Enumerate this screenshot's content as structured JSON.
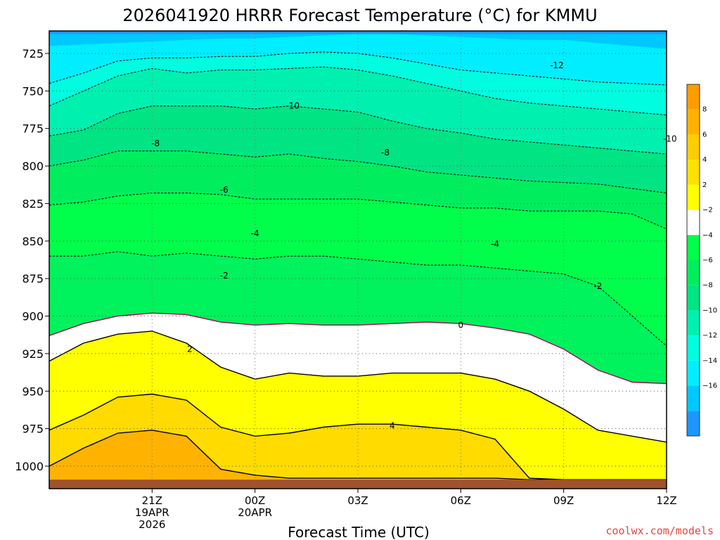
{
  "chart_data": {
    "type": "contour",
    "title": "2026041920 HRRR Forecast Temperature (°C) for KMMU",
    "xlabel": "Forecast Time (UTC)",
    "ylabel": "",
    "x_unit": "forecast hour",
    "xlim": [
      -3,
      15
    ],
    "ylim": [
      1015,
      710
    ],
    "y_ticks": [
      725,
      750,
      775,
      800,
      825,
      850,
      875,
      900,
      925,
      950,
      975,
      1000
    ],
    "x_ticks": [
      {
        "hour": 0,
        "label": "21Z",
        "sub1": "19APR",
        "sub2": "2026"
      },
      {
        "hour": 3,
        "label": "00Z",
        "sub1": "20APR",
        "sub2": ""
      },
      {
        "hour": 6,
        "label": "03Z",
        "sub1": "",
        "sub2": ""
      },
      {
        "hour": 9,
        "label": "06Z",
        "sub1": "",
        "sub2": ""
      },
      {
        "hour": 12,
        "label": "09Z",
        "sub1": "",
        "sub2": ""
      },
      {
        "hour": 15,
        "label": "12Z",
        "sub1": "",
        "sub2": ""
      }
    ],
    "grid": true,
    "ground_pressure": 1009,
    "fill_levels": [
      {
        "pressure": [
          860,
          860,
          857,
          860,
          858,
          860,
          862,
          860,
          860,
          862,
          864,
          866,
          866,
          868,
          870,
          872,
          880,
          900,
          920
        ],
        "color": "#00ff4a"
      },
      {
        "pressure": [
          826,
          824,
          820,
          818,
          818,
          819,
          822,
          822,
          822,
          822,
          824,
          826,
          828,
          828,
          830,
          830,
          830,
          832,
          842
        ],
        "color": "#00ee5e"
      },
      {
        "pressure": [
          800,
          796,
          790,
          790,
          790,
          792,
          794,
          792,
          795,
          797,
          800,
          804,
          806,
          808,
          810,
          811,
          812,
          815,
          818
        ],
        "color": "#00e483"
      },
      {
        "pressure": [
          780,
          776,
          765,
          760,
          760,
          760,
          762,
          760,
          762,
          764,
          770,
          775,
          778,
          782,
          784,
          786,
          788,
          790,
          792
        ],
        "color": "#00f0b0"
      },
      {
        "pressure": [
          760,
          750,
          740,
          735,
          738,
          736,
          736,
          735,
          734,
          736,
          740,
          745,
          750,
          755,
          758,
          760,
          762,
          764,
          766
        ],
        "color": "#00fde0"
      },
      {
        "pressure": [
          745,
          738,
          730,
          728,
          728,
          727,
          727,
          725,
          724,
          725,
          728,
          732,
          736,
          738,
          740,
          742,
          744,
          745,
          746
        ],
        "color": "#00eeff"
      },
      {
        "pressure": [
          720,
          719,
          718,
          717,
          716,
          715,
          715,
          714,
          713,
          712,
          712,
          713,
          714,
          715,
          716,
          716,
          718,
          720,
          722
        ],
        "color": "#00c8ff"
      },
      {
        "pressure": [
          712,
          712,
          712,
          712,
          712,
          712,
          712,
          712,
          712,
          712,
          712,
          712,
          712,
          712,
          712,
          712,
          712,
          712,
          712
        ],
        "color": "#1e96ff"
      }
    ],
    "warm_fills": [
      {
        "pressure": [
          913,
          905,
          900,
          898,
          899,
          904,
          906,
          905,
          906,
          906,
          905,
          904,
          905,
          908,
          912,
          922,
          936,
          944,
          945
        ],
        "color": "#ffffff"
      },
      {
        "pressure": [
          930,
          918,
          912,
          910,
          918,
          934,
          942,
          938,
          940,
          940,
          938,
          938,
          938,
          942,
          950,
          962,
          976,
          980,
          984
        ],
        "color": "#ffff00"
      },
      {
        "pressure": [
          976,
          966,
          954,
          952,
          956,
          974,
          980,
          978,
          974,
          972,
          972,
          974,
          976,
          982,
          1008,
          1009,
          1009,
          1009,
          1009
        ],
        "color": "#ffdb00"
      },
      {
        "pressure": [
          1000,
          988,
          978,
          976,
          980,
          1002,
          1006,
          1008,
          1008,
          1008,
          1008,
          1008,
          1008,
          1008,
          1009,
          1009,
          1009,
          1009,
          1009
        ],
        "color": "#ffb300"
      }
    ],
    "contour_labels": [
      {
        "hour": 0.1,
        "pressure": 785,
        "text": "-8"
      },
      {
        "hour": 4.1,
        "pressure": 760,
        "text": "-10"
      },
      {
        "hour": 6.8,
        "pressure": 791,
        "text": "-8"
      },
      {
        "hour": 11.8,
        "pressure": 733,
        "text": "-12"
      },
      {
        "hour": 15.1,
        "pressure": 782,
        "text": "-10"
      },
      {
        "hour": 2.1,
        "pressure": 816,
        "text": "-6"
      },
      {
        "hour": 3.0,
        "pressure": 845,
        "text": "-4"
      },
      {
        "hour": 10.0,
        "pressure": 852,
        "text": "-4"
      },
      {
        "hour": 2.1,
        "pressure": 873,
        "text": "-2"
      },
      {
        "hour": 13.0,
        "pressure": 880,
        "text": "-2"
      },
      {
        "hour": 9.0,
        "pressure": 906,
        "text": "0"
      },
      {
        "hour": 1.1,
        "pressure": 922,
        "text": "2"
      },
      {
        "hour": 7.0,
        "pressure": 973,
        "text": "4"
      }
    ],
    "colorbar": {
      "labels": [
        "8",
        "6",
        "4",
        "2",
        "−2",
        "−4",
        "−6",
        "−8",
        "−10",
        "−12",
        "−14",
        "−16"
      ],
      "colors": [
        "#ff9c00",
        "#ffb300",
        "#ffcd00",
        "#ffe100",
        "#ffff00",
        "#ffffff",
        "#00ff4a",
        "#00ee5e",
        "#00e483",
        "#00f0b0",
        "#00fde0",
        "#00eeff",
        "#00c8ff",
        "#1e96ff"
      ]
    }
  },
  "credit": "coolwx.com/models"
}
